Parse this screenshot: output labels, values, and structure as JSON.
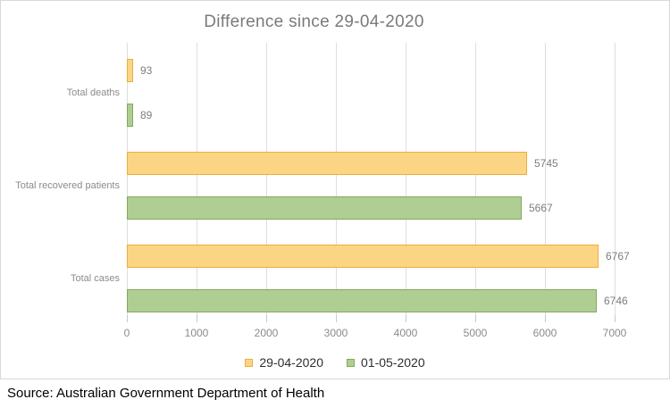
{
  "chart_data": {
    "type": "bar",
    "orientation": "horizontal",
    "title": "Difference since 29-04-2020",
    "categories": [
      "Total deaths",
      "Total recovered patients",
      "Total cases"
    ],
    "series": [
      {
        "name": "29-04-2020",
        "color": "#FBD584",
        "border_color": "#ECAE3F",
        "values": [
          93,
          5745,
          6767
        ]
      },
      {
        "name": "01-05-2020",
        "color": "#AECE93",
        "border_color": "#84A95C",
        "values": [
          89,
          5667,
          6746
        ]
      }
    ],
    "xlim": [
      0,
      7000
    ],
    "x_ticks": [
      0,
      1000,
      2000,
      3000,
      4000,
      5000,
      6000,
      7000
    ],
    "grid": true,
    "legend_position": "bottom",
    "data_labels": true
  },
  "colors": {
    "gridline": "#dedede",
    "tick": "#c9c9c9",
    "title_text": "#7a7a7a",
    "axis_text": "#8b8b8b",
    "value_text": "#7d7d7d",
    "legend_text": "#2e2e2e"
  },
  "source": "Source: Australian Government Department of Health"
}
